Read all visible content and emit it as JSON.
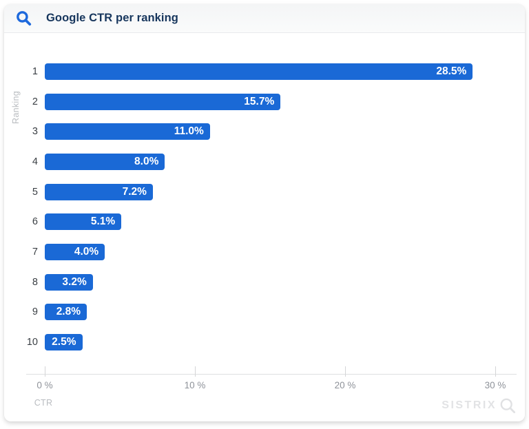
{
  "header": {
    "title": "Google CTR per ranking",
    "icon": "magnifier-icon"
  },
  "chart_data": {
    "type": "bar",
    "orientation": "horizontal",
    "title": "Google CTR per ranking",
    "categories": [
      "1",
      "2",
      "3",
      "4",
      "5",
      "6",
      "7",
      "8",
      "9",
      "10"
    ],
    "values": [
      28.5,
      15.7,
      11.0,
      8.0,
      7.2,
      5.1,
      4.0,
      3.2,
      2.8,
      2.5
    ],
    "bar_labels": [
      "28.5%",
      "15.7%",
      "11.0%",
      "8.0%",
      "7.2%",
      "5.1%",
      "4.0%",
      "3.2%",
      "2.8%",
      "2.5%"
    ],
    "xlabel": "CTR",
    "ylabel": "Ranking",
    "xticks": [
      0,
      10,
      20,
      30
    ],
    "xtick_labels": [
      "0 %",
      "10 %",
      "20 %",
      "30 %"
    ],
    "xlim": [
      0,
      32
    ],
    "grid": false,
    "legend": "none",
    "bar_color": "#1a69d6",
    "value_label_color": "#ffffff"
  },
  "watermark": {
    "text": "SISTRIX",
    "icon": "magnifier-icon"
  },
  "colors": {
    "accent_blue": "#1a69d6",
    "logo_blue": "#1e69dc",
    "title_navy": "#17365d",
    "axis_gray": "#dedfe1",
    "tick_text_gray": "#8e9299",
    "muted_label_gray": "#b9bcc0",
    "watermark_gray": "#e2e3e5",
    "header_bg": "#f4f5f6",
    "card_bg": "#ffffff"
  }
}
